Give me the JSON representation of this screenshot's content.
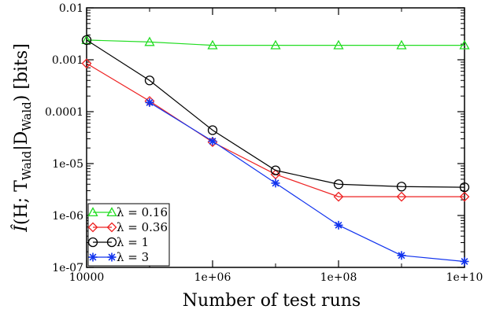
{
  "chart_data": {
    "type": "line",
    "xlabel": "Number of test runs",
    "ylabel": "Î(H; T_Wald|D_Wald) [bits]",
    "ylabel_parts": {
      "hat_i": "Î",
      "open": "(H; T",
      "sub1": "Wald",
      "mid": "|D",
      "sub2": "Wald",
      "close": ")  [bits]"
    },
    "x_scale": "log",
    "y_scale": "log",
    "xlim": [
      10000,
      10000000000
    ],
    "ylim": [
      1e-07,
      0.01
    ],
    "x_ticks": [
      {
        "value": 10000,
        "label": "10000"
      },
      {
        "value": 1000000,
        "label": "1e+06"
      },
      {
        "value": 100000000,
        "label": "1e+08"
      },
      {
        "value": 10000000000,
        "label": "1e+10"
      }
    ],
    "y_ticks": [
      {
        "value": 0.01,
        "label": "0.01"
      },
      {
        "value": 0.001,
        "label": "0.001"
      },
      {
        "value": 0.0001,
        "label": "0.0001"
      },
      {
        "value": 1e-05,
        "label": "1e-05"
      },
      {
        "value": 1e-06,
        "label": "1e-06"
      },
      {
        "value": 1e-07,
        "label": "1e-07"
      }
    ],
    "grid": false,
    "legend_position": "bottom-left",
    "series": [
      {
        "name": "λ = 0.16",
        "color": "#22dd22",
        "marker": "triangle",
        "x": [
          10000,
          100000,
          1000000,
          10000000,
          100000000,
          1000000000,
          10000000000
        ],
        "y": [
          0.0024,
          0.0022,
          0.0019,
          0.0019,
          0.0019,
          0.0019,
          0.0019
        ]
      },
      {
        "name": "λ = 0.36",
        "color": "#ee2222",
        "marker": "diamond",
        "x": [
          10000,
          100000,
          1000000,
          10000000,
          100000000,
          1000000000,
          10000000000
        ],
        "y": [
          0.00085,
          0.00016,
          2.6e-05,
          6.2e-06,
          2.3e-06,
          2.3e-06,
          2.3e-06
        ]
      },
      {
        "name": "λ = 1",
        "color": "#000000",
        "marker": "circle",
        "x": [
          10000,
          100000,
          1000000,
          10000000,
          100000000,
          1000000000,
          10000000000
        ],
        "y": [
          0.0024,
          0.0004,
          4.4e-05,
          7.4e-06,
          4e-06,
          3.6e-06,
          3.5e-06
        ]
      },
      {
        "name": "λ = 3",
        "color": "#1133ee",
        "marker": "star",
        "x": [
          100000,
          1000000,
          10000000,
          100000000,
          1000000000,
          10000000000
        ],
        "y": [
          0.00015,
          2.7e-05,
          4.2e-06,
          6.5e-07,
          1.7e-07,
          1.3e-07
        ]
      }
    ]
  }
}
